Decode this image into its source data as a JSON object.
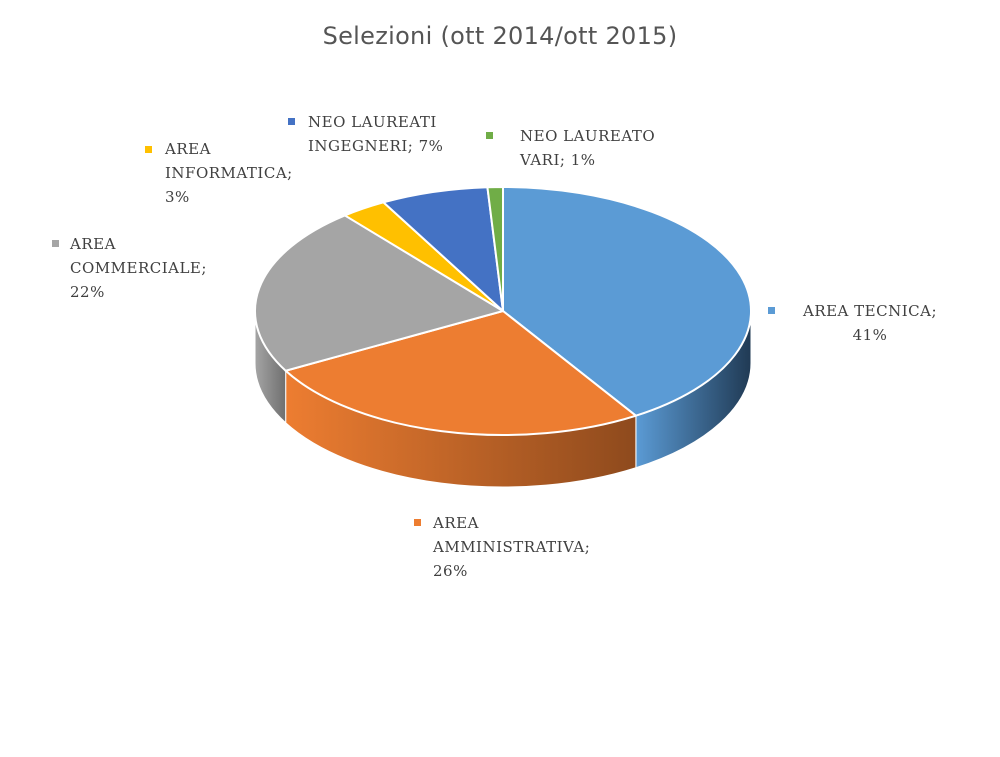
{
  "chart_data": {
    "type": "pie",
    "variant": "3d",
    "title": "Selezioni (ott 2014/ott 2015)",
    "slices": [
      {
        "name": "AREA TECNICA",
        "value": 41,
        "label": "AREA TECNICA;\n41%",
        "color": "#5B9BD5",
        "side": "#203A54"
      },
      {
        "name": "AREA AMMINISTRATIVA",
        "value": 26,
        "label": "AREA\nAMMINISTRATIVA;\n26%",
        "color": "#ED7D31",
        "side": "#8E4A1D"
      },
      {
        "name": "AREA COMMERCIALE",
        "value": 22,
        "label": "AREA\nCOMMERCIALE;\n22%",
        "color": "#A5A5A5",
        "side": "#6F6F6F"
      },
      {
        "name": "AREA INFORMATICA",
        "value": 3,
        "label": "AREA\nINFORMATICA;\n3%",
        "color": "#FFC000",
        "side": "#9F7800"
      },
      {
        "name": "NEO LAUREATI INGEGNERI",
        "value": 7,
        "label": "NEO LAUREATI\nINGEGNERI; 7%",
        "color": "#4472C4",
        "side": "#27457A"
      },
      {
        "name": "NEO LAUREATO VARI",
        "value": 1,
        "label": "NEO LAUREATO\nVARI; 1%",
        "color": "#70AD47",
        "side": "#44692B"
      }
    ]
  }
}
